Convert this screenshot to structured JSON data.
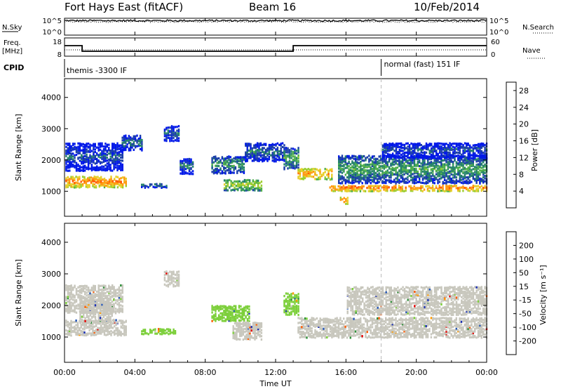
{
  "header": {
    "station": "Fort Hays East (fitACF)",
    "beam": "Beam 16",
    "date": "10/Feb/2014"
  },
  "status_panel": {
    "nsky_label": "N.Sky",
    "nsearch_label": "N.Search",
    "freq_label": "Freq.",
    "freq_unit": "[MHz]",
    "nave_label": "Nave",
    "cpid_label": "CPID",
    "n_ticks": [
      "10^5",
      "10^0"
    ],
    "n_ticks_right": [
      "10^5",
      "10^0"
    ],
    "freq_ticks": [
      "18",
      "8"
    ],
    "nave_ticks": [
      "60",
      "0"
    ],
    "freq_series": {
      "x_hours": [
        0,
        1,
        1,
        13,
        13,
        24
      ],
      "mhz": [
        14.5,
        14.5,
        10.5,
        10.5,
        14.5,
        14.5
      ]
    },
    "nave_level": 21,
    "nsky_level": 4.3,
    "cpid_modes": [
      {
        "label": "themis -3300 IF",
        "start_hour": 0
      },
      {
        "label": "normal (fast) 151 IF",
        "start_hour": 18
      }
    ]
  },
  "x_axis": {
    "label": "Time UT",
    "range_hours": [
      0,
      24
    ],
    "tick_hours": [
      0,
      4,
      8,
      12,
      16,
      20,
      24
    ],
    "tick_labels": [
      "00:00",
      "04:00",
      "08:00",
      "12:00",
      "16:00",
      "20:00",
      "00:00"
    ]
  },
  "colors": {
    "power": [
      "#0018e8",
      "#1b3fa8",
      "#25836a",
      "#4faf4a",
      "#9ccd2e",
      "#e7cf2a",
      "#ff9a10",
      "#ff5a00",
      "#e60000"
    ],
    "velocity": [
      "#e60000",
      "#ff5a00",
      "#ff9900",
      "#c8c7bd",
      "#c8c7bd",
      "#7ccf3a",
      "#2f8f3a",
      "#2456b8",
      "#1b2fb0"
    ],
    "ground_scatter": "#c8c7bd"
  },
  "chart_data": [
    {
      "type": "heatmap",
      "name": "power",
      "ylabel": "Slant Range [km]",
      "ylim": [
        200,
        4600
      ],
      "y_ticks": [
        1000,
        2000,
        3000,
        4000
      ],
      "colorbar": {
        "label": "Power [dB]",
        "ticks": [
          4,
          8,
          12,
          16,
          20,
          24,
          28
        ],
        "range": [
          0,
          30
        ]
      },
      "echo_bands": [
        {
          "start_hour": 0,
          "end_hour": 3.5,
          "range_center_km": 1350,
          "range_halfwidth_km": 180,
          "power_db": 24
        },
        {
          "start_hour": 0,
          "end_hour": 3.3,
          "range_center_km": 2150,
          "range_halfwidth_km": 450,
          "power_db": 6
        },
        {
          "start_hour": 3.2,
          "end_hour": 4.4,
          "range_center_km": 2600,
          "range_halfwidth_km": 250,
          "power_db": 8
        },
        {
          "start_hour": 4.3,
          "end_hour": 5.8,
          "range_center_km": 1230,
          "range_halfwidth_km": 70,
          "power_db": 9
        },
        {
          "start_hour": 5.6,
          "end_hour": 6.5,
          "range_center_km": 2900,
          "range_halfwidth_km": 250,
          "power_db": 7
        },
        {
          "start_hour": 6.5,
          "end_hour": 7.3,
          "range_center_km": 1850,
          "range_halfwidth_km": 250,
          "power_db": 8
        },
        {
          "start_hour": 8.3,
          "end_hour": 10.2,
          "range_center_km": 1900,
          "range_halfwidth_km": 280,
          "power_db": 10
        },
        {
          "start_hour": 9.0,
          "end_hour": 11.2,
          "range_center_km": 1250,
          "range_halfwidth_km": 180,
          "power_db": 16
        },
        {
          "start_hour": 10.2,
          "end_hour": 12.5,
          "range_center_km": 2300,
          "range_halfwidth_km": 300,
          "power_db": 8
        },
        {
          "start_hour": 12.4,
          "end_hour": 13.3,
          "range_center_km": 2100,
          "range_halfwidth_km": 350,
          "power_db": 12
        },
        {
          "start_hour": 13.2,
          "end_hour": 15.2,
          "range_center_km": 1600,
          "range_halfwidth_km": 180,
          "power_db": 22
        },
        {
          "start_hour": 15.0,
          "end_hour": 24,
          "range_center_km": 1150,
          "range_halfwidth_km": 100,
          "power_db": 24
        },
        {
          "start_hour": 15.5,
          "end_hour": 24,
          "range_center_km": 1750,
          "range_halfwidth_km": 450,
          "power_db": 11
        },
        {
          "start_hour": 18.0,
          "end_hour": 24,
          "range_center_km": 2350,
          "range_halfwidth_km": 250,
          "power_db": 6
        },
        {
          "start_hour": 15.6,
          "end_hour": 16.1,
          "range_center_km": 750,
          "range_halfwidth_km": 120,
          "power_db": 22
        }
      ]
    },
    {
      "type": "heatmap",
      "name": "velocity",
      "ylabel": "Slant Range [km]",
      "ylim": [
        200,
        4600
      ],
      "y_ticks": [
        1000,
        2000,
        3000,
        4000
      ],
      "colorbar": {
        "label": "Velocity [m s⁻¹]",
        "ticks": [
          -200,
          -100,
          -50,
          -15,
          15,
          50,
          100,
          200
        ],
        "tick_labels": [
          "-200",
          "-100",
          "-50",
          "-15",
          "15",
          "50",
          "100",
          "200"
        ]
      },
      "echo_bands": [
        {
          "start_hour": 0,
          "end_hour": 3.5,
          "range_center_km": 1350,
          "range_halfwidth_km": 250,
          "velocity_ms": 0
        },
        {
          "start_hour": 0,
          "end_hour": 3.3,
          "range_center_km": 2250,
          "range_halfwidth_km": 450,
          "velocity_ms": 0
        },
        {
          "start_hour": 0.8,
          "end_hour": 2.8,
          "range_center_km": 1900,
          "range_halfwidth_km": 400,
          "velocity_ms": -40
        },
        {
          "start_hour": 4.3,
          "end_hour": 6.3,
          "range_center_km": 1230,
          "range_halfwidth_km": 90,
          "velocity_ms": 40
        },
        {
          "start_hour": 5.6,
          "end_hour": 6.5,
          "range_center_km": 2900,
          "range_halfwidth_km": 250,
          "velocity_ms": 0
        },
        {
          "start_hour": 8.3,
          "end_hour": 10.5,
          "range_center_km": 1800,
          "range_halfwidth_km": 250,
          "velocity_ms": 40
        },
        {
          "start_hour": 9.5,
          "end_hour": 11.2,
          "range_center_km": 1250,
          "range_halfwidth_km": 280,
          "velocity_ms": -40
        },
        {
          "start_hour": 12.4,
          "end_hour": 13.3,
          "range_center_km": 2100,
          "range_halfwidth_km": 350,
          "velocity_ms": 40
        },
        {
          "start_hour": 13.2,
          "end_hour": 24,
          "range_center_km": 1350,
          "range_halfwidth_km": 320,
          "velocity_ms": 0
        },
        {
          "start_hour": 16.0,
          "end_hour": 24,
          "range_center_km": 2200,
          "range_halfwidth_km": 450,
          "velocity_ms": 0
        }
      ]
    }
  ]
}
